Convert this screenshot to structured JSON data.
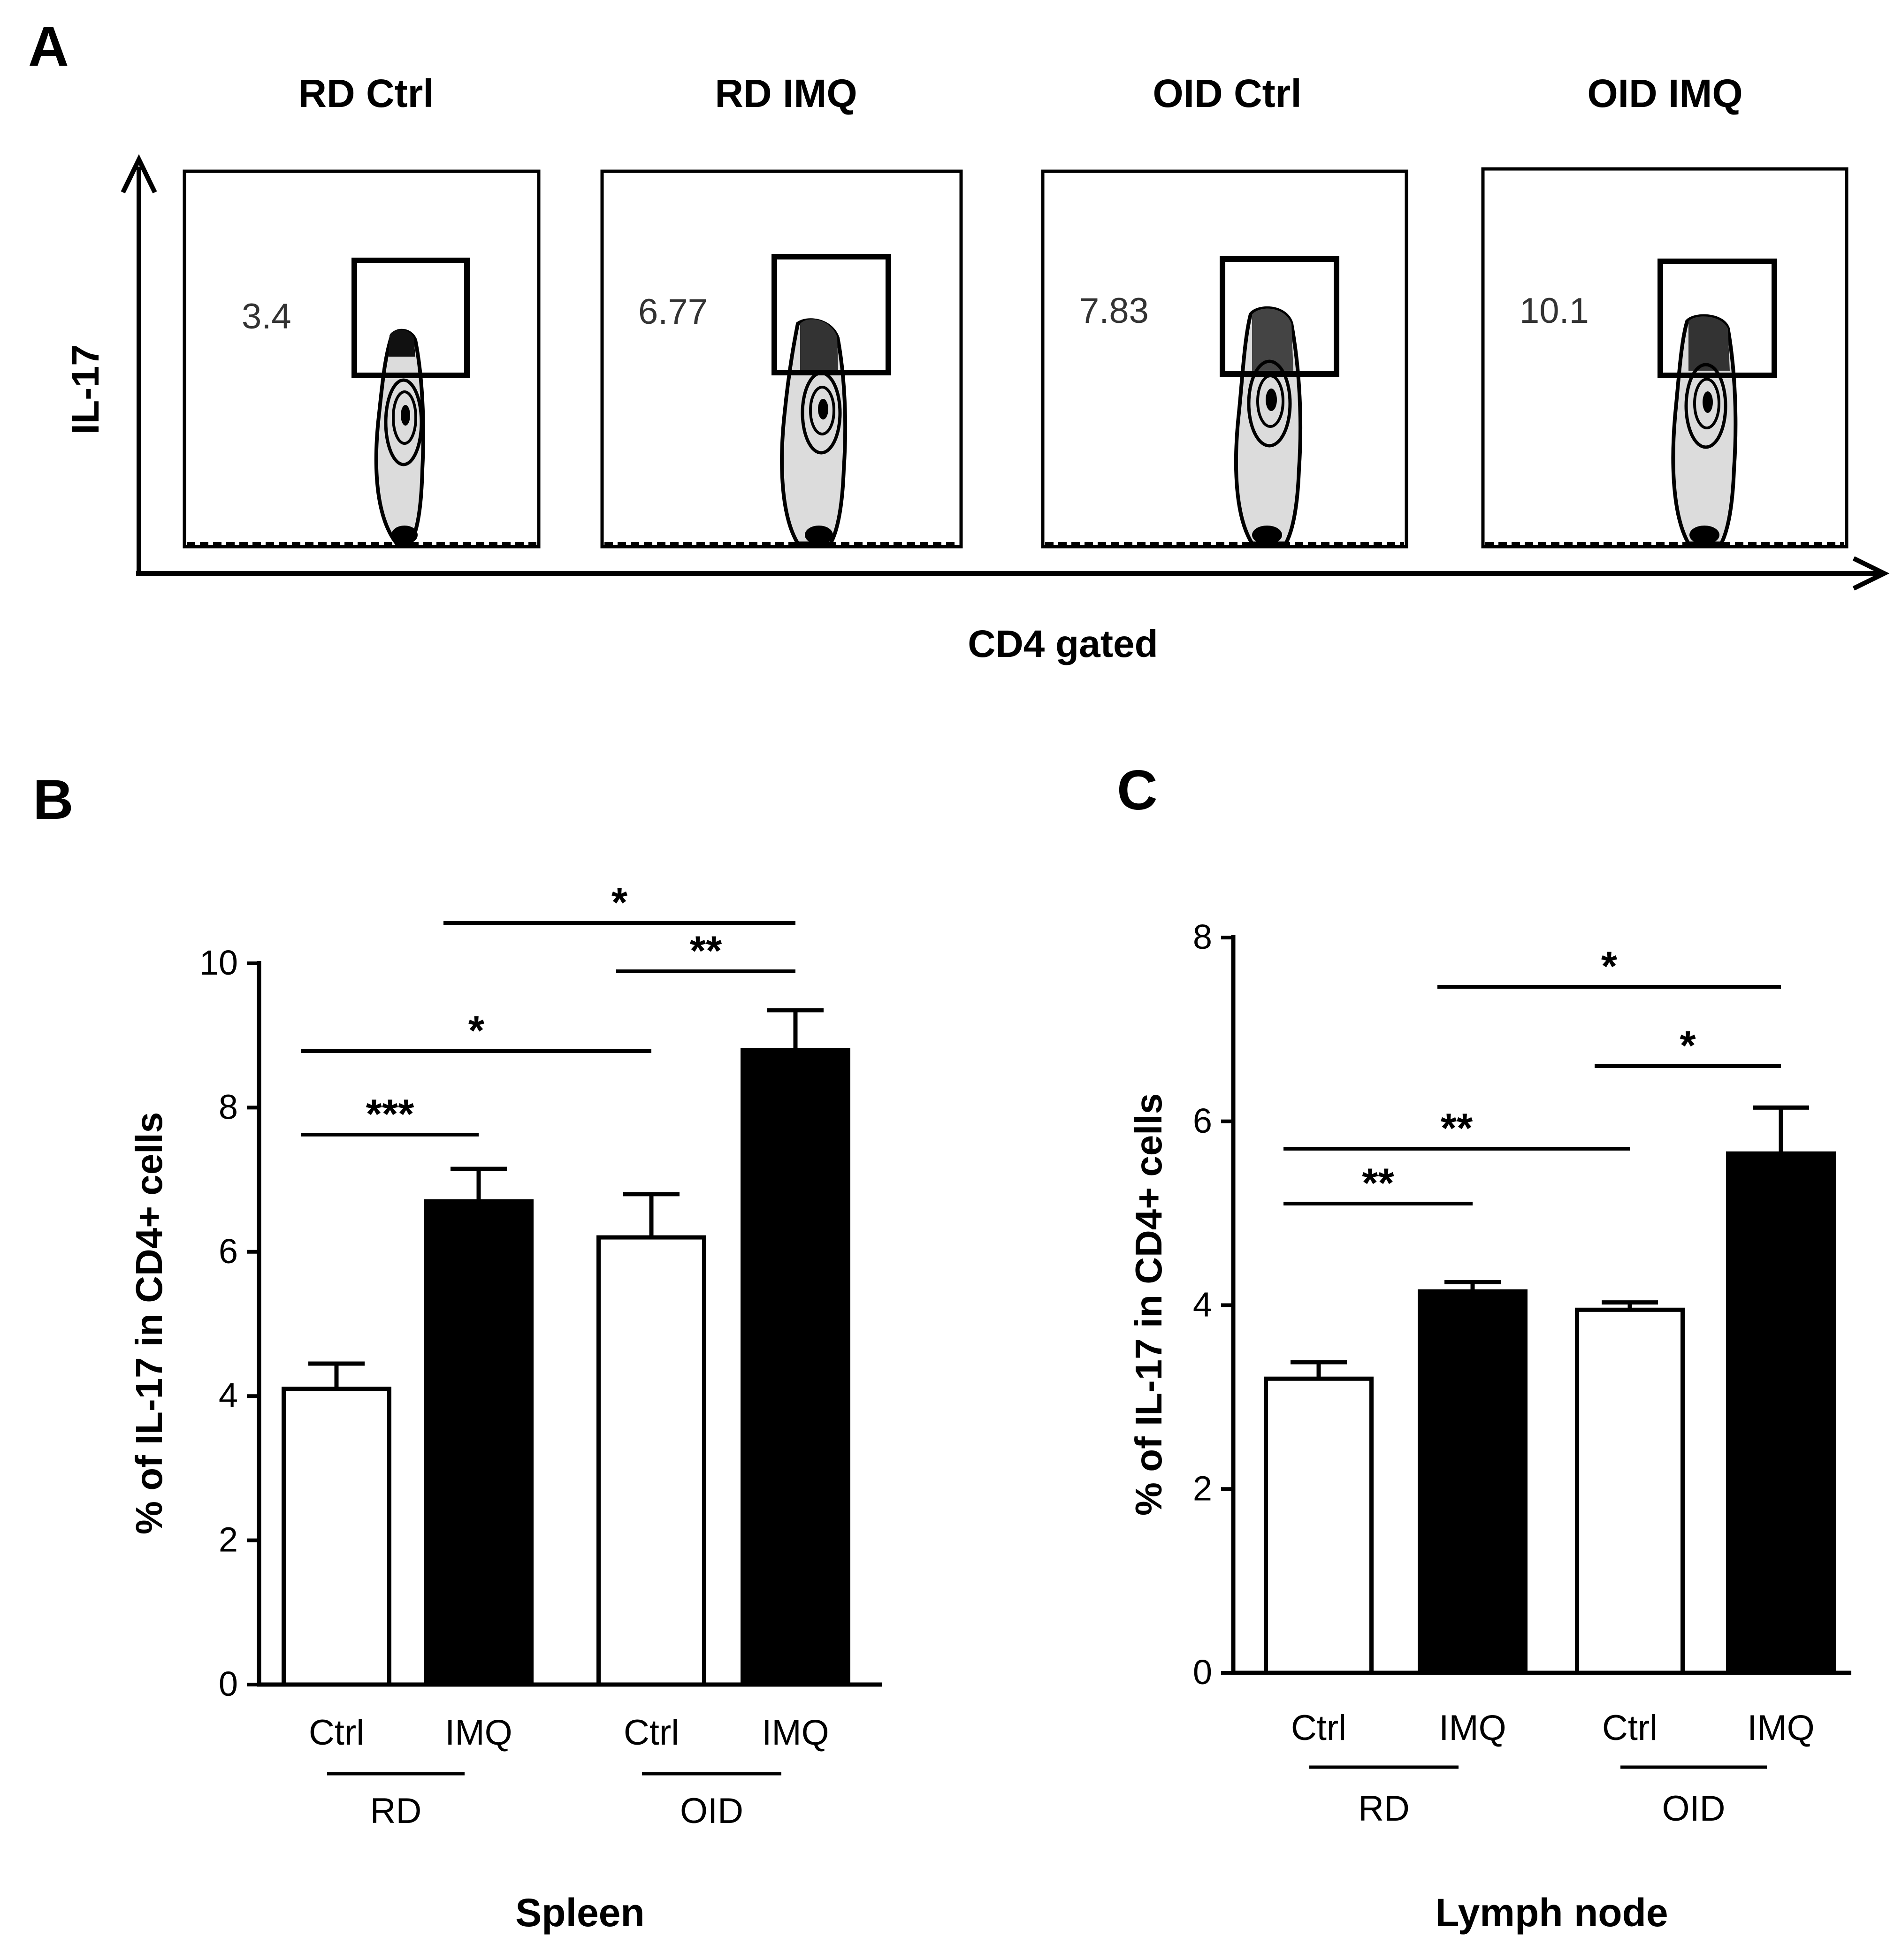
{
  "panel_a": {
    "letter": "A",
    "y_axis_label": "IL-17",
    "x_axis_label": "CD4 gated",
    "plots": [
      {
        "title": "RD Ctrl",
        "gate_value": "3.4"
      },
      {
        "title": "RD IMQ",
        "gate_value": "6.77"
      },
      {
        "title": "OID Ctrl",
        "gate_value": "7.83"
      },
      {
        "title": "OID IMQ",
        "gate_value": "10.1"
      }
    ]
  },
  "chart_data": [
    {
      "panel": "B",
      "type": "bar",
      "title": "Spleen",
      "xlabel": "Spleen",
      "ylabel": "% of IL-17 in CD4+ cells",
      "ylim": [
        0,
        10
      ],
      "yticks": [
        "0",
        "2",
        "4",
        "6",
        "8",
        "10"
      ],
      "categories": [
        "Ctrl",
        "IMQ",
        "Ctrl",
        "IMQ"
      ],
      "groups": [
        {
          "label": "RD",
          "members": [
            0,
            1
          ]
        },
        {
          "label": "OID",
          "members": [
            2,
            3
          ]
        }
      ],
      "values": [
        4.1,
        6.7,
        6.2,
        8.8
      ],
      "errors": [
        0.35,
        0.45,
        0.6,
        0.55
      ],
      "fills": [
        "#ffffff",
        "#000000",
        "#ffffff",
        "#000000"
      ],
      "significance": [
        {
          "from": 0,
          "to": 1,
          "label": "***"
        },
        {
          "from": 0,
          "to": 2,
          "label": "*"
        },
        {
          "from": 2,
          "to": 3,
          "label": "**"
        },
        {
          "from": 1,
          "to": 3,
          "label": "*"
        }
      ]
    },
    {
      "panel": "C",
      "type": "bar",
      "title": "Lymph  node",
      "xlabel": "Lymph  node",
      "ylabel": "% of IL-17 in CD4+ cells",
      "ylim": [
        0,
        8
      ],
      "yticks": [
        "0",
        "2",
        "4",
        "6",
        "8"
      ],
      "categories": [
        "Ctrl",
        "IMQ",
        "Ctrl",
        "IMQ"
      ],
      "groups": [
        {
          "label": "RD",
          "members": [
            0,
            1
          ]
        },
        {
          "label": "OID",
          "members": [
            2,
            3
          ]
        }
      ],
      "values": [
        3.2,
        4.15,
        3.95,
        5.65
      ],
      "errors": [
        0.18,
        0.1,
        0.08,
        0.5
      ],
      "fills": [
        "#ffffff",
        "#000000",
        "#ffffff",
        "#000000"
      ],
      "significance": [
        {
          "from": 0,
          "to": 1,
          "label": "**"
        },
        {
          "from": 0,
          "to": 2,
          "label": "**"
        },
        {
          "from": 2,
          "to": 3,
          "label": "*"
        },
        {
          "from": 1,
          "to": 3,
          "label": "*"
        }
      ]
    }
  ]
}
